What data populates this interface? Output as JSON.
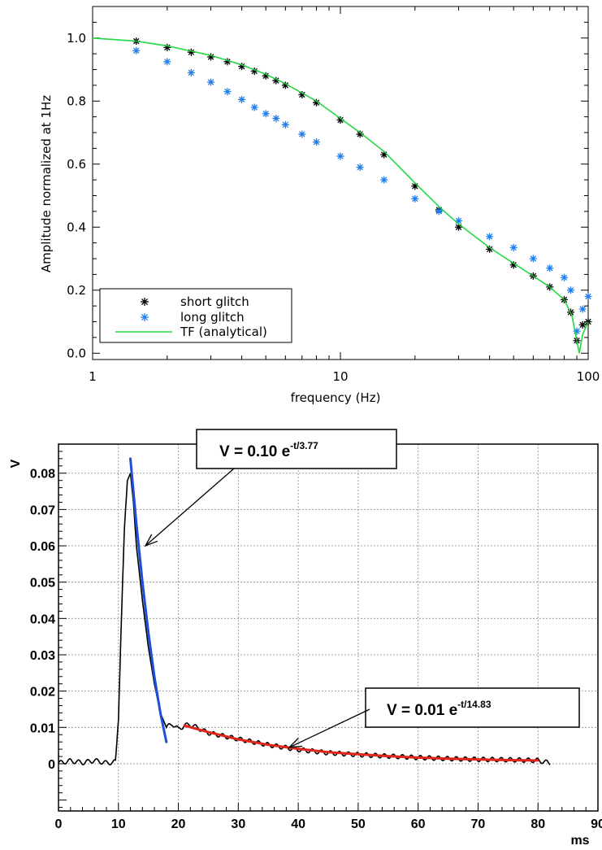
{
  "chart_data": [
    {
      "type": "scatter",
      "title": "",
      "xlabel": "frequency (Hz)",
      "ylabel": "Amplitude normalized at 1Hz",
      "xscale": "log",
      "xlim": [
        1,
        100
      ],
      "ylim": [
        -0.02,
        1.1
      ],
      "x_ticks": [
        1,
        10,
        100
      ],
      "y_ticks": [
        0.0,
        0.2,
        0.4,
        0.6,
        0.8,
        1.0
      ],
      "y_tick_labels": [
        "0.0",
        "0.2",
        "0.4",
        "0.6",
        "0.8",
        "1.0"
      ],
      "grid": false,
      "legend_position": "bottom-left",
      "series": [
        {
          "name": "short glitch",
          "marker": "asterisk",
          "color": "#000000",
          "x": [
            1.5,
            2,
            2.5,
            3,
            3.5,
            4,
            4.5,
            5,
            5.5,
            6,
            7,
            8,
            10,
            12,
            15,
            20,
            25,
            30,
            40,
            50,
            60,
            70,
            80,
            85,
            90,
            95,
            100
          ],
          "y": [
            0.99,
            0.97,
            0.955,
            0.94,
            0.925,
            0.91,
            0.895,
            0.88,
            0.865,
            0.85,
            0.82,
            0.795,
            0.74,
            0.695,
            0.63,
            0.53,
            0.455,
            0.4,
            0.33,
            0.28,
            0.245,
            0.21,
            0.17,
            0.13,
            0.04,
            0.09,
            0.1
          ]
        },
        {
          "name": "long glitch",
          "marker": "asterisk",
          "color": "#1f7ff0",
          "x": [
            1.5,
            2,
            2.5,
            3,
            3.5,
            4,
            4.5,
            5,
            5.5,
            6,
            7,
            8,
            10,
            12,
            15,
            20,
            25,
            30,
            40,
            50,
            60,
            70,
            80,
            85,
            90,
            95,
            100
          ],
          "y": [
            0.96,
            0.925,
            0.89,
            0.86,
            0.83,
            0.805,
            0.78,
            0.76,
            0.745,
            0.725,
            0.695,
            0.67,
            0.625,
            0.59,
            0.55,
            0.49,
            0.45,
            0.42,
            0.37,
            0.335,
            0.3,
            0.27,
            0.24,
            0.2,
            0.07,
            0.14,
            0.18
          ]
        },
        {
          "name": "TF (analytical)",
          "marker": "line",
          "color": "#2bd94a",
          "x": [
            1,
            1.5,
            2,
            3,
            4,
            5,
            6,
            8,
            10,
            12,
            15,
            20,
            25,
            30,
            40,
            50,
            60,
            70,
            80,
            86,
            90,
            92,
            95,
            100
          ],
          "y": [
            1.0,
            0.99,
            0.975,
            0.945,
            0.915,
            0.885,
            0.855,
            0.8,
            0.745,
            0.7,
            0.64,
            0.54,
            0.465,
            0.41,
            0.335,
            0.285,
            0.245,
            0.21,
            0.17,
            0.12,
            0.04,
            0.0,
            0.06,
            0.1
          ]
        }
      ]
    },
    {
      "type": "line",
      "title": "",
      "xlabel": "ms",
      "ylabel": "V",
      "xlim": [
        0,
        90
      ],
      "ylim": [
        -0.013,
        0.088
      ],
      "x_ticks": [
        0,
        10,
        20,
        30,
        40,
        50,
        60,
        70,
        80,
        90
      ],
      "y_ticks": [
        0,
        0.01,
        0.02,
        0.03,
        0.04,
        0.05,
        0.06,
        0.07,
        0.08
      ],
      "y_tick_labels": [
        "0",
        "0.01",
        "0.02",
        "0.03",
        "0.04",
        "0.05",
        "0.06",
        "0.07",
        "0.08"
      ],
      "grid": true,
      "series": [
        {
          "name": "",
          "color": "#000000",
          "x": [
            0,
            2,
            4,
            6,
            8,
            9.5,
            10,
            10.5,
            11,
            11.5,
            12,
            12.5,
            13,
            14,
            15,
            16,
            17,
            18,
            19,
            20,
            21,
            22,
            25,
            30,
            35,
            40,
            45,
            50,
            55,
            60,
            65,
            70,
            75,
            80,
            82
          ],
          "y": [
            0.0002,
            0.0008,
            0.0003,
            0.0009,
            0.0002,
            0.0005,
            0.012,
            0.04,
            0.065,
            0.078,
            0.08,
            0.072,
            0.06,
            0.045,
            0.032,
            0.022,
            0.014,
            0.01,
            0.011,
            0.0095,
            0.0105,
            0.0108,
            0.0085,
            0.0068,
            0.0052,
            0.0039,
            0.003,
            0.0025,
            0.0021,
            0.0017,
            0.0014,
            0.0012,
            0.0011,
            0.0009,
            0.0002
          ]
        },
        {
          "name": "",
          "color": "#1f4fd8",
          "x": [
            12,
            13,
            14,
            15,
            16,
            17,
            18
          ],
          "y": [
            0.084,
            0.066,
            0.05,
            0.036,
            0.024,
            0.014,
            0.006
          ]
        },
        {
          "name": "",
          "color": "#e0251b",
          "x": [
            21,
            25,
            30,
            35,
            40,
            45,
            50,
            55,
            60,
            65,
            70,
            75,
            80
          ],
          "y": [
            0.0105,
            0.0087,
            0.0067,
            0.0052,
            0.0041,
            0.0032,
            0.0026,
            0.0021,
            0.0017,
            0.0014,
            0.0012,
            0.001,
            0.0009
          ]
        }
      ],
      "annotations": [
        {
          "text": "V = 0.10 e",
          "sup": "-t/3.77",
          "points_to": [
            14.5,
            0.06
          ]
        },
        {
          "text": "V = 0.01 e",
          "sup": "-t/14.83",
          "points_to": [
            38.5,
            0.0045
          ]
        }
      ]
    }
  ]
}
